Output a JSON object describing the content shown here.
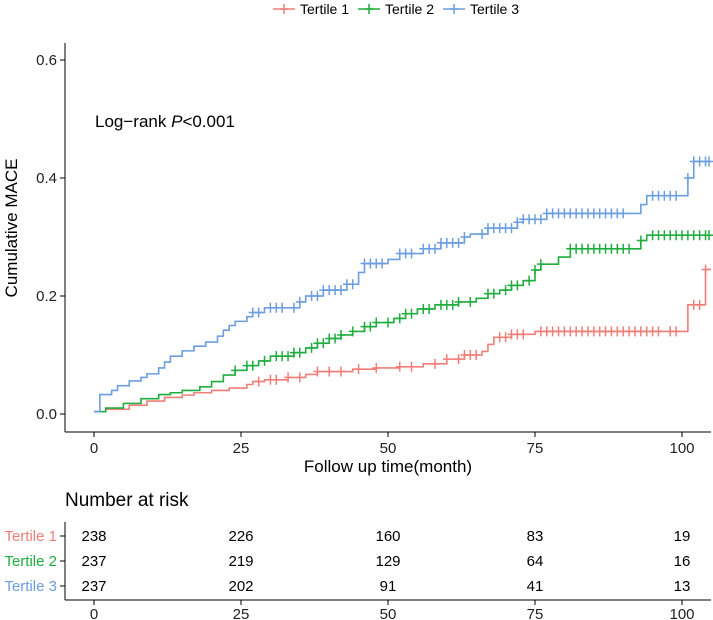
{
  "chart_data": {
    "type": "line",
    "subtype": "step (Kaplan-Meier cumulative incidence)",
    "xlabel": "Follow up time(month)",
    "ylabel": "Cumulative MACE",
    "xlim": [
      0,
      105
    ],
    "ylim": [
      0.0,
      0.6
    ],
    "x_ticks": [
      "0",
      "25",
      "50",
      "75",
      "100"
    ],
    "y_ticks": [
      "0.0",
      "0.2",
      "0.4",
      "0.6"
    ],
    "x_tick_values": [
      0,
      25,
      50,
      75,
      100
    ],
    "y_tick_values": [
      0.0,
      0.2,
      0.4,
      0.6
    ],
    "legend_position": "top",
    "annotation": {
      "prefix": "Log−rank ",
      "italic": "P",
      "suffix": "<0.001"
    },
    "series": [
      {
        "name": "Tertile 1",
        "color": "#f07f79",
        "steps": [
          [
            0,
            0.004
          ],
          [
            2,
            0.008
          ],
          [
            6,
            0.015
          ],
          [
            9,
            0.022
          ],
          [
            12,
            0.028
          ],
          [
            15,
            0.032
          ],
          [
            17,
            0.036
          ],
          [
            20,
            0.04
          ],
          [
            23,
            0.044
          ],
          [
            26,
            0.05
          ],
          [
            27,
            0.055
          ],
          [
            29,
            0.058
          ],
          [
            33,
            0.062
          ],
          [
            36,
            0.067
          ],
          [
            38,
            0.072
          ],
          [
            44,
            0.076
          ],
          [
            48,
            0.078
          ],
          [
            52,
            0.08
          ],
          [
            56,
            0.085
          ],
          [
            60,
            0.093
          ],
          [
            63,
            0.1
          ],
          [
            66,
            0.106
          ],
          [
            67,
            0.118
          ],
          [
            68,
            0.13
          ],
          [
            71,
            0.135
          ],
          [
            75,
            0.14
          ],
          [
            93,
            0.14
          ],
          [
            101,
            0.185
          ],
          [
            104,
            0.245
          ]
        ],
        "censor": [
          28,
          30,
          31,
          33,
          35,
          38,
          40,
          42,
          45,
          48,
          52,
          54,
          58,
          60,
          62,
          63,
          64,
          65,
          69,
          70,
          71,
          72,
          73,
          76,
          77,
          78,
          79,
          80,
          81,
          82,
          83,
          84,
          85,
          86,
          87,
          88,
          89,
          90,
          91,
          92,
          93,
          94,
          95,
          96,
          98,
          99,
          102,
          103,
          104
        ]
      },
      {
        "name": "Tertile 2",
        "color": "#1fad3f",
        "steps": [
          [
            0,
            0.004
          ],
          [
            2,
            0.01
          ],
          [
            5,
            0.018
          ],
          [
            8,
            0.026
          ],
          [
            11,
            0.033
          ],
          [
            13,
            0.036
          ],
          [
            15,
            0.04
          ],
          [
            18,
            0.046
          ],
          [
            20,
            0.055
          ],
          [
            22,
            0.066
          ],
          [
            24,
            0.074
          ],
          [
            26,
            0.082
          ],
          [
            28,
            0.09
          ],
          [
            30,
            0.098
          ],
          [
            34,
            0.104
          ],
          [
            36,
            0.112
          ],
          [
            38,
            0.12
          ],
          [
            40,
            0.128
          ],
          [
            42,
            0.134
          ],
          [
            44,
            0.14
          ],
          [
            46,
            0.148
          ],
          [
            48,
            0.155
          ],
          [
            51,
            0.162
          ],
          [
            53,
            0.17
          ],
          [
            55,
            0.178
          ],
          [
            58,
            0.185
          ],
          [
            62,
            0.19
          ],
          [
            65,
            0.196
          ],
          [
            67,
            0.204
          ],
          [
            69,
            0.21
          ],
          [
            71,
            0.218
          ],
          [
            73,
            0.226
          ],
          [
            75,
            0.244
          ],
          [
            76,
            0.254
          ],
          [
            79,
            0.266
          ],
          [
            81,
            0.28
          ],
          [
            93,
            0.294
          ],
          [
            94,
            0.303
          ],
          [
            105,
            0.303
          ]
        ],
        "censor": [
          24,
          26,
          27,
          29,
          31,
          32,
          33,
          34,
          35,
          37,
          38,
          39,
          40,
          41,
          42,
          44,
          46,
          47,
          48,
          50,
          52,
          53,
          54,
          56,
          57,
          59,
          60,
          61,
          62,
          64,
          67,
          68,
          70,
          71,
          72,
          74,
          75,
          76,
          81,
          82,
          83,
          84,
          85,
          86,
          87,
          88,
          89,
          90,
          91,
          93,
          95,
          96,
          97,
          98,
          99,
          100,
          101,
          102,
          103,
          104,
          105
        ]
      },
      {
        "name": "Tertile 3",
        "color": "#6c9ee0",
        "steps": [
          [
            0,
            0.004
          ],
          [
            1,
            0.033
          ],
          [
            3,
            0.04
          ],
          [
            4,
            0.048
          ],
          [
            6,
            0.056
          ],
          [
            8,
            0.062
          ],
          [
            9,
            0.068
          ],
          [
            11,
            0.078
          ],
          [
            12,
            0.088
          ],
          [
            13,
            0.098
          ],
          [
            15,
            0.107
          ],
          [
            17,
            0.115
          ],
          [
            19,
            0.122
          ],
          [
            21,
            0.132
          ],
          [
            22,
            0.142
          ],
          [
            23,
            0.15
          ],
          [
            24,
            0.157
          ],
          [
            26,
            0.165
          ],
          [
            27,
            0.172
          ],
          [
            29,
            0.18
          ],
          [
            35,
            0.19
          ],
          [
            36,
            0.2
          ],
          [
            39,
            0.21
          ],
          [
            43,
            0.22
          ],
          [
            45,
            0.24
          ],
          [
            46,
            0.255
          ],
          [
            50,
            0.262
          ],
          [
            52,
            0.272
          ],
          [
            56,
            0.28
          ],
          [
            59,
            0.29
          ],
          [
            63,
            0.3
          ],
          [
            64,
            0.305
          ],
          [
            67,
            0.315
          ],
          [
            72,
            0.325
          ],
          [
            73,
            0.33
          ],
          [
            77,
            0.34
          ],
          [
            93,
            0.355
          ],
          [
            94,
            0.37
          ],
          [
            101,
            0.4
          ],
          [
            102,
            0.428
          ],
          [
            105,
            0.428
          ]
        ],
        "censor": [
          27,
          28,
          30,
          31,
          32,
          34,
          35,
          37,
          38,
          39,
          40,
          41,
          42,
          43,
          44,
          46,
          47,
          48,
          49,
          52,
          53,
          54,
          56,
          57,
          58,
          59,
          60,
          61,
          62,
          63,
          66,
          67,
          68,
          69,
          70,
          71,
          72,
          73,
          74,
          75,
          76,
          77,
          78,
          79,
          80,
          81,
          82,
          83,
          84,
          85,
          86,
          87,
          88,
          89,
          90,
          95,
          96,
          97,
          98,
          99,
          101,
          102,
          103,
          104,
          105
        ]
      }
    ],
    "risk_table": {
      "title": "Number at risk",
      "time_labels": [
        "0",
        "25",
        "50",
        "75",
        "100"
      ],
      "time_points": [
        0,
        25,
        50,
        75,
        100
      ],
      "rows": [
        {
          "label": "Tertile 1",
          "color": "#f07f79",
          "values": [
            "238",
            "226",
            "160",
            "83",
            "19"
          ]
        },
        {
          "label": "Tertile 2",
          "color": "#1fad3f",
          "values": [
            "237",
            "219",
            "129",
            "64",
            "16"
          ]
        },
        {
          "label": "Tertile 3",
          "color": "#6c9ee0",
          "values": [
            "237",
            "202",
            "91",
            "41",
            "13"
          ]
        }
      ]
    }
  }
}
